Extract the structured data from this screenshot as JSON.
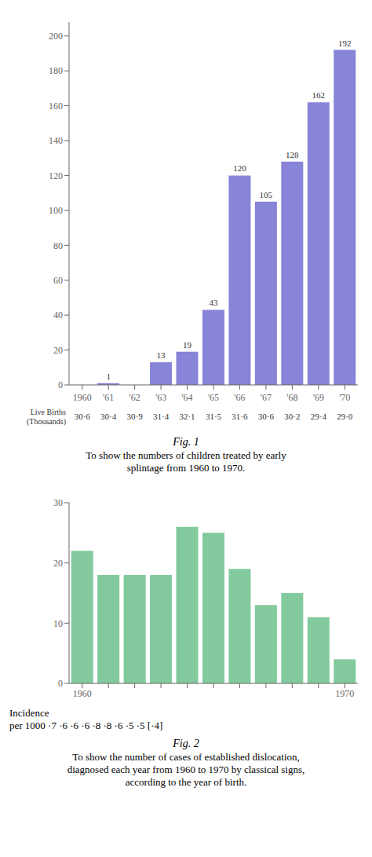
{
  "chart_data": [
    {
      "type": "bar",
      "title": "Fig. 1",
      "subtitle": "To show the numbers of children treated by early\nsplintage from 1960 to 1970.",
      "categories": [
        "1960",
        "'61",
        "'62",
        "'63",
        "'64",
        "'65",
        "'66",
        "'67",
        "'68",
        "'69",
        "'70"
      ],
      "values": [
        0,
        1,
        0,
        13,
        19,
        43,
        120,
        105,
        128,
        162,
        192
      ],
      "color": "#8884d8",
      "ylim": [
        0,
        208
      ],
      "yticks": [
        0,
        20,
        40,
        60,
        80,
        100,
        120,
        140,
        160,
        180,
        200
      ],
      "data_labels": true,
      "annotations": [
        {
          "text": "Live Births\n(Thousands)"
        },
        {
          "text": "30·6",
          "category": "1960"
        },
        {
          "text": "30·4",
          "category": "'61"
        },
        {
          "text": "30·9",
          "category": "'62"
        },
        {
          "text": "31·4",
          "category": "'63"
        },
        {
          "text": "32·1",
          "category": "'64"
        },
        {
          "text": "31·5",
          "category": "'65"
        },
        {
          "text": "31·6",
          "category": "'66"
        },
        {
          "text": "30·6",
          "category": "'67"
        },
        {
          "text": "30·2",
          "category": "'68"
        },
        {
          "text": "29·4",
          "category": "'69"
        },
        {
          "text": "29·0",
          "category": "'70"
        }
      ]
    },
    {
      "type": "bar",
      "title": "Fig. 2",
      "subtitle": "To show the number of cases of established dislocation,\ndiagnosed each year from 1960 to 1970 by classical signs,\naccording to the year of birth.",
      "categories": [
        "1960",
        null,
        null,
        null,
        null,
        null,
        null,
        null,
        null,
        null,
        "1970"
      ],
      "values": [
        22,
        18,
        18,
        18,
        26,
        25,
        19,
        13,
        15,
        11,
        4
      ],
      "color": "#82ca9d",
      "ylim": [
        0,
        30
      ],
      "yticks": [
        0,
        10,
        20,
        30
      ],
      "annotations": [
        {
          "text": "Incidence"
        },
        {
          "text": "per 1000 ·7 ·6 ·6 ·6 ·8 ·8 ·6 ·5 ·5 [·4]"
        }
      ]
    }
  ]
}
